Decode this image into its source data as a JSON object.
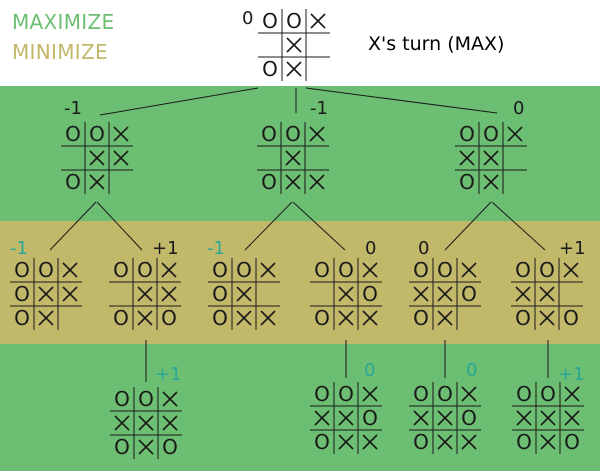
{
  "legend": {
    "maximize": "MAXIMIZE",
    "minimize": "MINIMIZE"
  },
  "turn_label": "X's turn (MAX)",
  "colors": {
    "max_band": "#6cbf72",
    "min_band": "#c2b86a",
    "max_label": "#6cbf72",
    "min_label": "#c2b86a",
    "score_dark": "#1a1a1a",
    "score_teal": "#2aa79a"
  },
  "nodes": [
    {
      "id": "root",
      "board": [
        "O",
        "O",
        "X",
        " ",
        "X",
        " ",
        "O",
        "X",
        " "
      ],
      "score": "0",
      "score_color": "dark"
    },
    {
      "id": "a1",
      "parent": "root",
      "board": [
        "O",
        "O",
        "X",
        " ",
        "X",
        "X",
        "O",
        "X",
        " "
      ],
      "score": "-1",
      "score_color": "dark"
    },
    {
      "id": "a2",
      "parent": "root",
      "board": [
        "O",
        "O",
        "X",
        " ",
        "X",
        " ",
        "O",
        "X",
        "X"
      ],
      "score": "-1",
      "score_color": "dark"
    },
    {
      "id": "a3",
      "parent": "root",
      "board": [
        "O",
        "O",
        "X",
        "X",
        "X",
        " ",
        "O",
        "X",
        " "
      ],
      "score": "0",
      "score_color": "dark"
    },
    {
      "id": "b1",
      "parent": "a1",
      "board": [
        "O",
        "O",
        "X",
        "O",
        "X",
        "X",
        "O",
        "X",
        " "
      ],
      "score": "-1",
      "score_color": "teal"
    },
    {
      "id": "b2",
      "parent": "a1",
      "board": [
        "O",
        "O",
        "X",
        " ",
        "X",
        "X",
        "O",
        "X",
        "O"
      ],
      "score": "+1",
      "score_color": "dark"
    },
    {
      "id": "b3",
      "parent": "a2",
      "board": [
        "O",
        "O",
        "X",
        "O",
        "X",
        " ",
        "O",
        "X",
        "X"
      ],
      "score": "-1",
      "score_color": "teal"
    },
    {
      "id": "b4",
      "parent": "a2",
      "board": [
        "O",
        "O",
        "X",
        " ",
        "X",
        "O",
        "O",
        "X",
        "X"
      ],
      "score": "0",
      "score_color": "dark"
    },
    {
      "id": "b5",
      "parent": "a3",
      "board": [
        "O",
        "O",
        "X",
        "X",
        "X",
        "O",
        "O",
        "X",
        " "
      ],
      "score": "0",
      "score_color": "dark"
    },
    {
      "id": "b6",
      "parent": "a3",
      "board": [
        "O",
        "O",
        "X",
        "X",
        "X",
        " ",
        "O",
        "X",
        "O"
      ],
      "score": "+1",
      "score_color": "dark"
    },
    {
      "id": "c1",
      "parent": "b2",
      "board": [
        "O",
        "O",
        "X",
        "X",
        "X",
        "X",
        "O",
        "X",
        "O"
      ],
      "score": "+1",
      "score_color": "teal"
    },
    {
      "id": "c2",
      "parent": "b4",
      "board": [
        "O",
        "O",
        "X",
        "X",
        "X",
        "O",
        "O",
        "X",
        "X"
      ],
      "score": "0",
      "score_color": "teal"
    },
    {
      "id": "c3",
      "parent": "b5",
      "board": [
        "O",
        "O",
        "X",
        "X",
        "X",
        "O",
        "O",
        "X",
        "X"
      ],
      "score": "0",
      "score_color": "teal"
    },
    {
      "id": "c4",
      "parent": "b6",
      "board": [
        "O",
        "O",
        "X",
        "X",
        "X",
        "X",
        "O",
        "X",
        "O"
      ],
      "score": "+1",
      "score_color": "teal"
    }
  ]
}
